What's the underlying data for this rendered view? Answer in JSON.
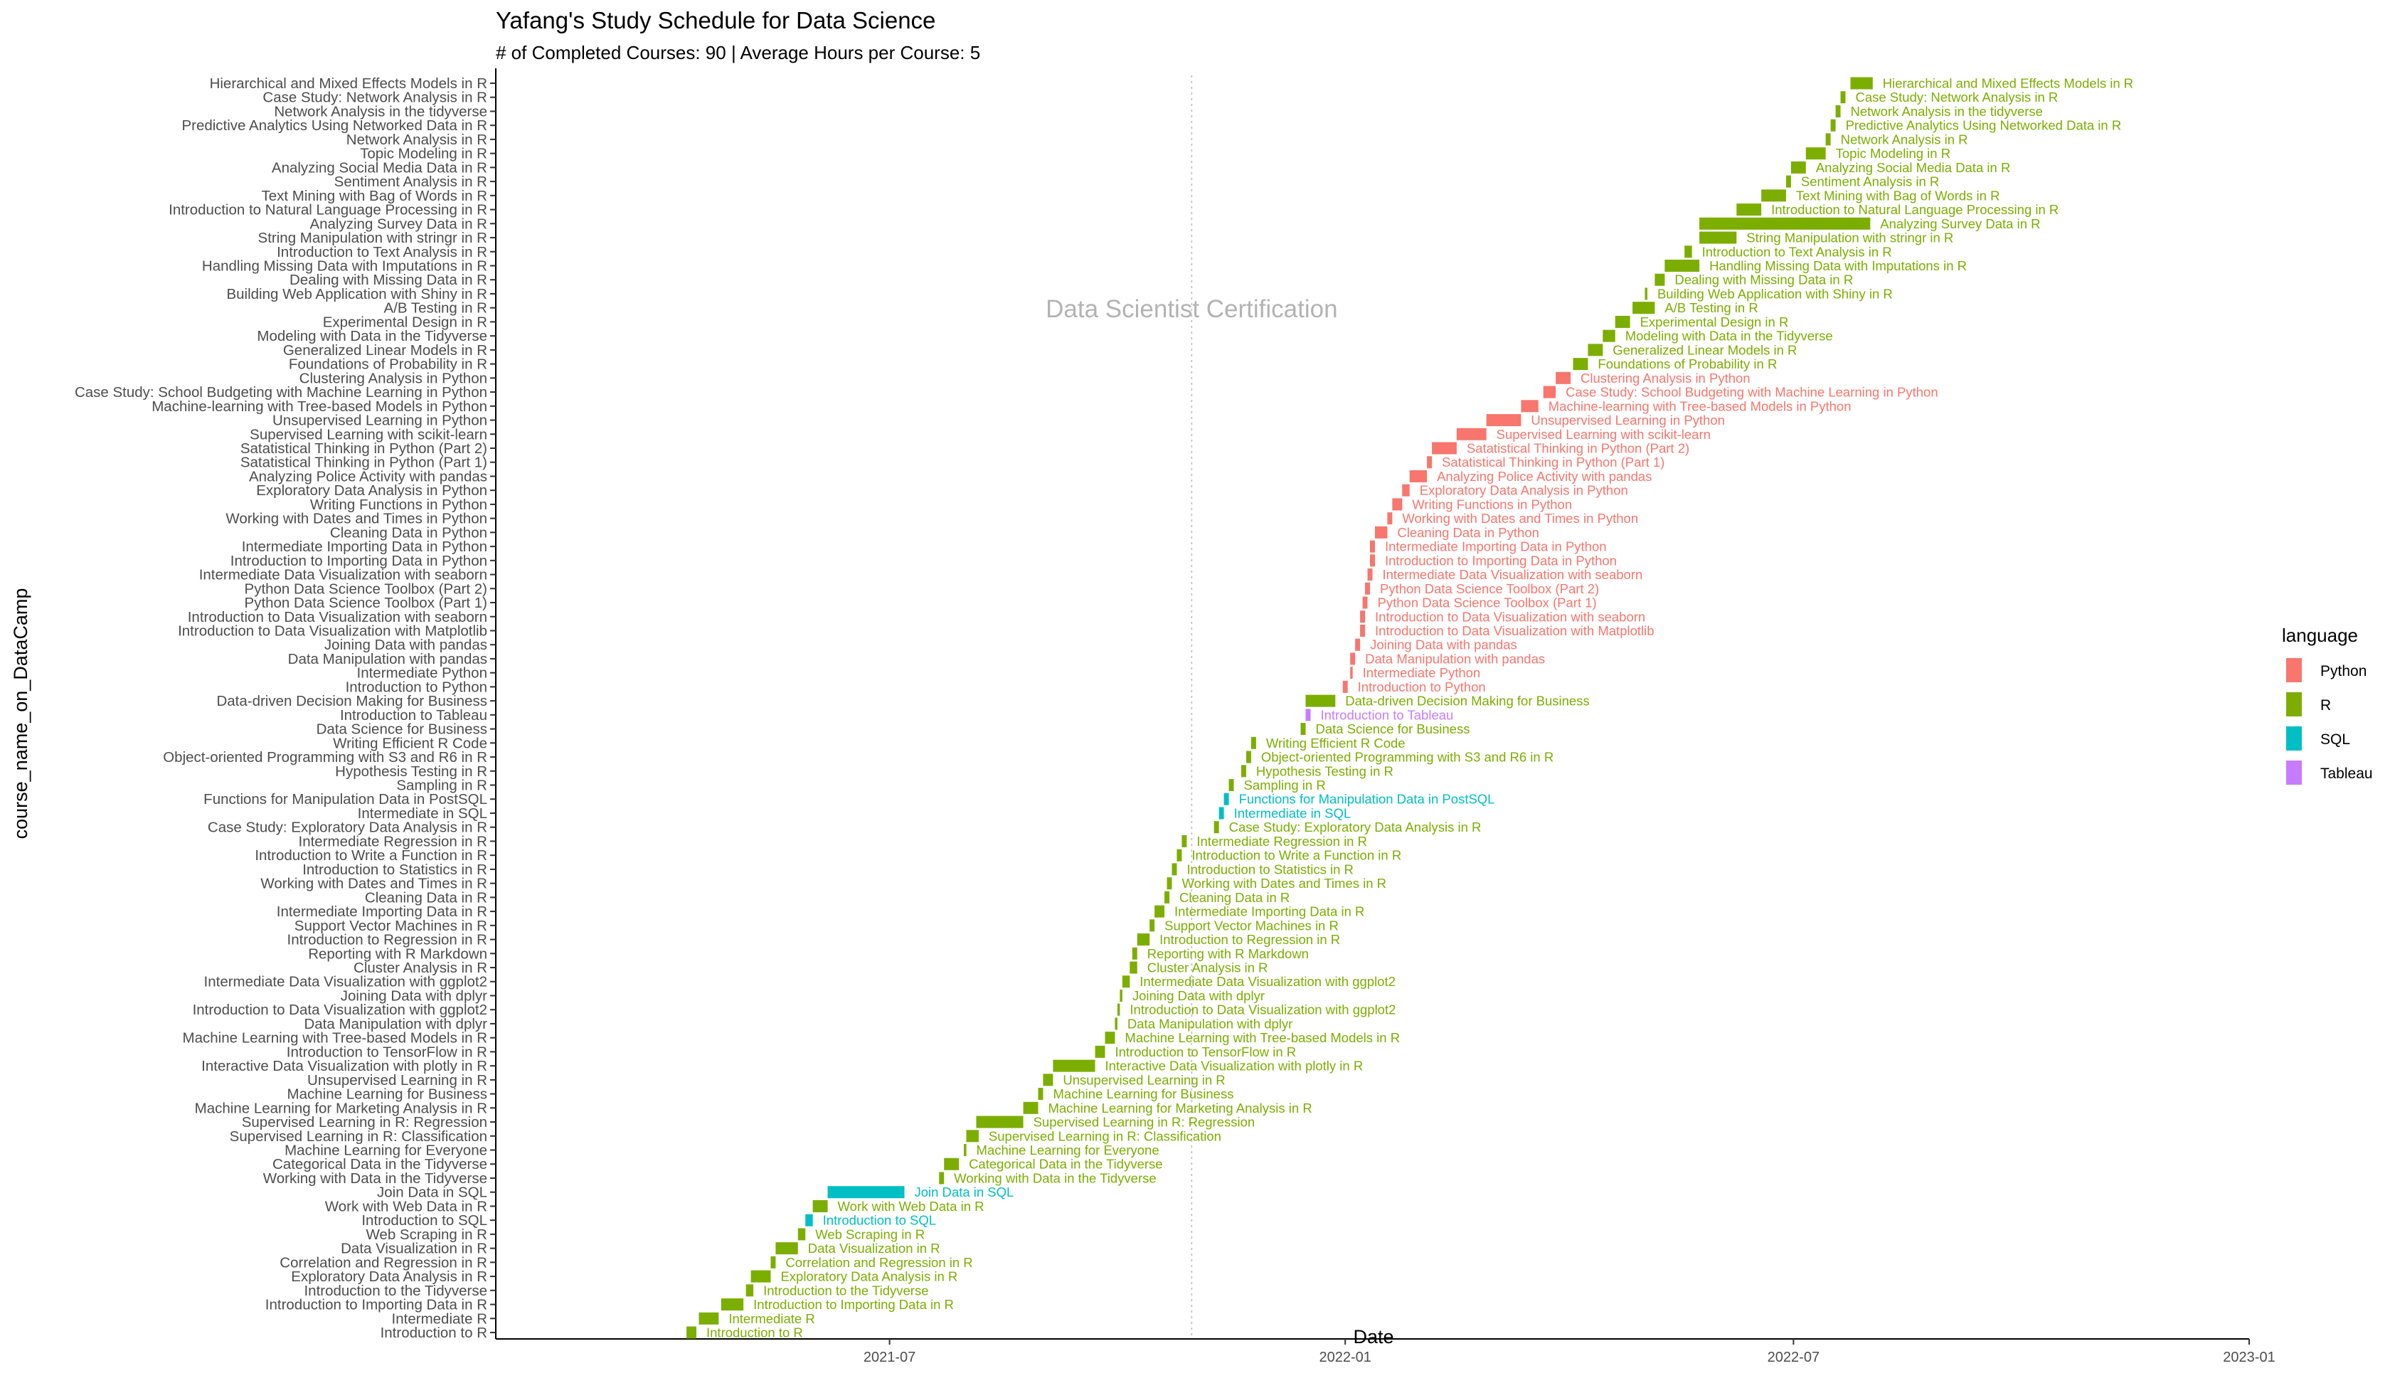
{
  "chart_data": {
    "type": "gantt",
    "title": "Yafang's Study Schedule for Data Science",
    "subtitle": "# of Completed Courses: 90 | Average Hours per Course: 5",
    "xlabel": "Date",
    "ylabel": "course_name_on_DataCamp",
    "x_ticks": [
      "2021-07",
      "2022-01",
      "2022-07",
      "2023-01"
    ],
    "x_tick_dates": [
      "2021-07-01",
      "2022-01-01",
      "2022-07-01",
      "2023-01-01"
    ],
    "xlim": [
      "2021-01-23",
      "2023-01-01"
    ],
    "grid": false,
    "legend": {
      "title": "language",
      "position": "right",
      "entries": [
        {
          "name": "Python",
          "color": "#F8766D"
        },
        {
          "name": "R",
          "color": "#7CAE00"
        },
        {
          "name": "SQL",
          "color": "#00BFC4"
        },
        {
          "name": "Tableau",
          "color": "#C77CFF"
        }
      ]
    },
    "annotation": {
      "text": "Data Scientist Certification",
      "date": "2021-10-31",
      "line_style": "dotted"
    },
    "courses": [
      {
        "name": "Introduction to R",
        "lang": "R",
        "start": "2021-04-10",
        "end": "2021-04-14"
      },
      {
        "name": "Intermediate R",
        "lang": "R",
        "start": "2021-04-15",
        "end": "2021-04-23"
      },
      {
        "name": "Introduction to Importing Data in R",
        "lang": "R",
        "start": "2021-04-24",
        "end": "2021-05-03"
      },
      {
        "name": "Introduction to the Tidyverse",
        "lang": "R",
        "start": "2021-05-04",
        "end": "2021-05-07"
      },
      {
        "name": "Exploratory Data Analysis in R",
        "lang": "R",
        "start": "2021-05-06",
        "end": "2021-05-14"
      },
      {
        "name": "Correlation and Regression in R",
        "lang": "R",
        "start": "2021-05-14",
        "end": "2021-05-16"
      },
      {
        "name": "Data Visualization in R",
        "lang": "R",
        "start": "2021-05-16",
        "end": "2021-05-25"
      },
      {
        "name": "Web Scraping in R",
        "lang": "R",
        "start": "2021-05-25",
        "end": "2021-05-28"
      },
      {
        "name": "Introduction to SQL",
        "lang": "SQL",
        "start": "2021-05-28",
        "end": "2021-05-31"
      },
      {
        "name": "Work with Web Data in R",
        "lang": "R",
        "start": "2021-05-31",
        "end": "2021-06-06"
      },
      {
        "name": "Join Data in SQL",
        "lang": "SQL",
        "start": "2021-06-06",
        "end": "2021-07-07"
      },
      {
        "name": "Working with Data in the Tidyverse",
        "lang": "R",
        "start": "2021-07-21",
        "end": "2021-07-23"
      },
      {
        "name": "Categorical Data in the Tidyverse",
        "lang": "R",
        "start": "2021-07-23",
        "end": "2021-07-29"
      },
      {
        "name": "Machine Learning for Everyone",
        "lang": "R",
        "start": "2021-07-31",
        "end": "2021-08-01"
      },
      {
        "name": "Supervised Learning in R: Classification",
        "lang": "R",
        "start": "2021-08-01",
        "end": "2021-08-06"
      },
      {
        "name": "Supervised Learning in R: Regression",
        "lang": "R",
        "start": "2021-08-05",
        "end": "2021-08-24"
      },
      {
        "name": "Machine Learning for Marketing Analysis in R",
        "lang": "R",
        "start": "2021-08-24",
        "end": "2021-08-30"
      },
      {
        "name": "Machine Learning for Business",
        "lang": "R",
        "start": "2021-08-30",
        "end": "2021-09-01"
      },
      {
        "name": "Unsupervised Learning in R",
        "lang": "R",
        "start": "2021-09-01",
        "end": "2021-09-05"
      },
      {
        "name": "Interactive Data Visualization with plotly in R",
        "lang": "R",
        "start": "2021-09-05",
        "end": "2021-09-22"
      },
      {
        "name": "Introduction to TensorFlow in R",
        "lang": "R",
        "start": "2021-09-22",
        "end": "2021-09-26"
      },
      {
        "name": "Machine Learning with Tree-based Models in R",
        "lang": "R",
        "start": "2021-09-26",
        "end": "2021-09-30"
      },
      {
        "name": "Data Manipulation with dplyr",
        "lang": "R",
        "start": "2021-09-30",
        "end": "2021-10-01"
      },
      {
        "name": "Introduction to Data Visualization with ggplot2",
        "lang": "R",
        "start": "2021-10-01",
        "end": "2021-10-02"
      },
      {
        "name": "Joining Data with dplyr",
        "lang": "R",
        "start": "2021-10-02",
        "end": "2021-10-03"
      },
      {
        "name": "Intermediate Data Visualization with ggplot2",
        "lang": "R",
        "start": "2021-10-03",
        "end": "2021-10-06"
      },
      {
        "name": "Cluster Analysis in R",
        "lang": "R",
        "start": "2021-10-06",
        "end": "2021-10-09"
      },
      {
        "name": "Reporting with R Markdown",
        "lang": "R",
        "start": "2021-10-07",
        "end": "2021-10-09"
      },
      {
        "name": "Introduction to Regression in R",
        "lang": "R",
        "start": "2021-10-09",
        "end": "2021-10-14"
      },
      {
        "name": "Support Vector Machines in R",
        "lang": "R",
        "start": "2021-10-14",
        "end": "2021-10-16"
      },
      {
        "name": "Intermediate Importing Data in R",
        "lang": "R",
        "start": "2021-10-16",
        "end": "2021-10-20"
      },
      {
        "name": "Cleaning Data in R",
        "lang": "R",
        "start": "2021-10-20",
        "end": "2021-10-22"
      },
      {
        "name": "Working with Dates and Times in R",
        "lang": "R",
        "start": "2021-10-21",
        "end": "2021-10-23"
      },
      {
        "name": "Introduction to Statistics in R",
        "lang": "R",
        "start": "2021-10-23",
        "end": "2021-10-25"
      },
      {
        "name": "Introduction to Write a Function in R",
        "lang": "R",
        "start": "2021-10-25",
        "end": "2021-10-27"
      },
      {
        "name": "Intermediate Regression in R",
        "lang": "R",
        "start": "2021-10-27",
        "end": "2021-10-29"
      },
      {
        "name": "Case Study: Exploratory Data Analysis in R",
        "lang": "R",
        "start": "2021-11-09",
        "end": "2021-11-11"
      },
      {
        "name": "Intermediate in SQL",
        "lang": "SQL",
        "start": "2021-11-11",
        "end": "2021-11-13"
      },
      {
        "name": "Functions for Manipulation Data in PostSQL",
        "lang": "SQL",
        "start": "2021-11-13",
        "end": "2021-11-15"
      },
      {
        "name": "Sampling in R",
        "lang": "R",
        "start": "2021-11-15",
        "end": "2021-11-17"
      },
      {
        "name": "Hypothesis Testing in R",
        "lang": "R",
        "start": "2021-11-20",
        "end": "2021-11-22"
      },
      {
        "name": "Object-oriented Programming with S3 and R6 in R",
        "lang": "R",
        "start": "2021-11-22",
        "end": "2021-11-24"
      },
      {
        "name": "Writing Efficient R Code",
        "lang": "R",
        "start": "2021-11-24",
        "end": "2021-11-26"
      },
      {
        "name": "Data Science for Business",
        "lang": "R",
        "start": "2021-12-14",
        "end": "2021-12-16"
      },
      {
        "name": "Introduction to Tableau",
        "lang": "Tableau",
        "start": "2021-12-16",
        "end": "2021-12-18"
      },
      {
        "name": "Data-driven Decision Making for Business",
        "lang": "R",
        "start": "2021-12-16",
        "end": "2021-12-28"
      },
      {
        "name": "Introduction to Python",
        "lang": "Python",
        "start": "2021-12-31",
        "end": "2022-01-02"
      },
      {
        "name": "Intermediate Python",
        "lang": "Python",
        "start": "2022-01-03",
        "end": "2022-01-04"
      },
      {
        "name": "Data Manipulation with pandas",
        "lang": "Python",
        "start": "2022-01-03",
        "end": "2022-01-05"
      },
      {
        "name": "Joining Data with pandas",
        "lang": "Python",
        "start": "2022-01-05",
        "end": "2022-01-07"
      },
      {
        "name": "Introduction to Data Visualization with Matplotlib",
        "lang": "Python",
        "start": "2022-01-07",
        "end": "2022-01-09"
      },
      {
        "name": "Introduction to Data Visualization with seaborn",
        "lang": "Python",
        "start": "2022-01-07",
        "end": "2022-01-09"
      },
      {
        "name": "Python Data Science Toolbox (Part 1)",
        "lang": "Python",
        "start": "2022-01-08",
        "end": "2022-01-10"
      },
      {
        "name": "Python Data Science Toolbox (Part 2)",
        "lang": "Python",
        "start": "2022-01-09",
        "end": "2022-01-11"
      },
      {
        "name": "Intermediate Data Visualization with seaborn",
        "lang": "Python",
        "start": "2022-01-10",
        "end": "2022-01-12"
      },
      {
        "name": "Introduction to Importing Data in Python",
        "lang": "Python",
        "start": "2022-01-11",
        "end": "2022-01-13"
      },
      {
        "name": "Intermediate Importing Data in Python",
        "lang": "Python",
        "start": "2022-01-11",
        "end": "2022-01-13"
      },
      {
        "name": "Cleaning Data in Python",
        "lang": "Python",
        "start": "2022-01-13",
        "end": "2022-01-18"
      },
      {
        "name": "Working with Dates and Times in Python",
        "lang": "Python",
        "start": "2022-01-18",
        "end": "2022-01-20"
      },
      {
        "name": "Writing Functions in Python",
        "lang": "Python",
        "start": "2022-01-20",
        "end": "2022-01-24"
      },
      {
        "name": "Exploratory Data Analysis in Python",
        "lang": "Python",
        "start": "2022-01-24",
        "end": "2022-01-27"
      },
      {
        "name": "Analyzing Police Activity with pandas",
        "lang": "Python",
        "start": "2022-01-27",
        "end": "2022-02-03"
      },
      {
        "name": "Satatistical Thinking in Python (Part 1)",
        "lang": "Python",
        "start": "2022-02-03",
        "end": "2022-02-05"
      },
      {
        "name": "Satatistical Thinking in Python (Part 2)",
        "lang": "Python",
        "start": "2022-02-05",
        "end": "2022-02-15"
      },
      {
        "name": "Supervised Learning with scikit-learn",
        "lang": "Python",
        "start": "2022-02-15",
        "end": "2022-02-27"
      },
      {
        "name": "Unsupervised Learning in Python",
        "lang": "Python",
        "start": "2022-02-27",
        "end": "2022-03-13"
      },
      {
        "name": "Machine-learning with Tree-based Models in Python",
        "lang": "Python",
        "start": "2022-03-13",
        "end": "2022-03-20"
      },
      {
        "name": "Case Study: School Budgeting with Machine Learning in Python",
        "lang": "Python",
        "start": "2022-03-22",
        "end": "2022-03-27"
      },
      {
        "name": "Clustering Analysis in Python",
        "lang": "Python",
        "start": "2022-03-27",
        "end": "2022-04-02"
      },
      {
        "name": "Foundations of Probability in R",
        "lang": "R",
        "start": "2022-04-03",
        "end": "2022-04-09"
      },
      {
        "name": "Generalized Linear Models in R",
        "lang": "R",
        "start": "2022-04-09",
        "end": "2022-04-15"
      },
      {
        "name": "Modeling with Data in the Tidyverse",
        "lang": "R",
        "start": "2022-04-15",
        "end": "2022-04-20"
      },
      {
        "name": "Experimental Design in R",
        "lang": "R",
        "start": "2022-04-20",
        "end": "2022-04-26"
      },
      {
        "name": "A/B Testing in R",
        "lang": "R",
        "start": "2022-04-27",
        "end": "2022-05-06"
      },
      {
        "name": "Building Web Application with Shiny in R",
        "lang": "R",
        "start": "2022-05-02",
        "end": "2022-05-03"
      },
      {
        "name": "Dealing with Missing Data in R",
        "lang": "R",
        "start": "2022-05-06",
        "end": "2022-05-10"
      },
      {
        "name": "Handling Missing Data with Imputations in R",
        "lang": "R",
        "start": "2022-05-10",
        "end": "2022-05-24"
      },
      {
        "name": "Introduction to Text Analysis in R",
        "lang": "R",
        "start": "2022-05-18",
        "end": "2022-05-21"
      },
      {
        "name": "String Manipulation with stringr in R",
        "lang": "R",
        "start": "2022-05-24",
        "end": "2022-06-08"
      },
      {
        "name": "Analyzing Survey Data in R",
        "lang": "R",
        "start": "2022-05-24",
        "end": "2022-08-01"
      },
      {
        "name": "Introduction to Natural Language Processing in R",
        "lang": "R",
        "start": "2022-06-08",
        "end": "2022-06-18"
      },
      {
        "name": "Text Mining with Bag of Words in R",
        "lang": "R",
        "start": "2022-06-18",
        "end": "2022-06-28"
      },
      {
        "name": "Sentiment Analysis in R",
        "lang": "R",
        "start": "2022-06-28",
        "end": "2022-06-30"
      },
      {
        "name": "Analyzing Social Media Data in R",
        "lang": "R",
        "start": "2022-06-30",
        "end": "2022-07-06"
      },
      {
        "name": "Topic Modeling in R",
        "lang": "R",
        "start": "2022-07-06",
        "end": "2022-07-14"
      },
      {
        "name": "Network Analysis in R",
        "lang": "R",
        "start": "2022-07-14",
        "end": "2022-07-16"
      },
      {
        "name": "Predictive Analytics Using Networked Data in R",
        "lang": "R",
        "start": "2022-07-16",
        "end": "2022-07-18"
      },
      {
        "name": "Network Analysis in the tidyverse",
        "lang": "R",
        "start": "2022-07-18",
        "end": "2022-07-20"
      },
      {
        "name": "Case Study: Network Analysis in R",
        "lang": "R",
        "start": "2022-07-20",
        "end": "2022-07-22"
      },
      {
        "name": "Hierarchical and Mixed Effects Models in R",
        "lang": "R",
        "start": "2022-07-24",
        "end": "2022-08-02"
      }
    ]
  }
}
